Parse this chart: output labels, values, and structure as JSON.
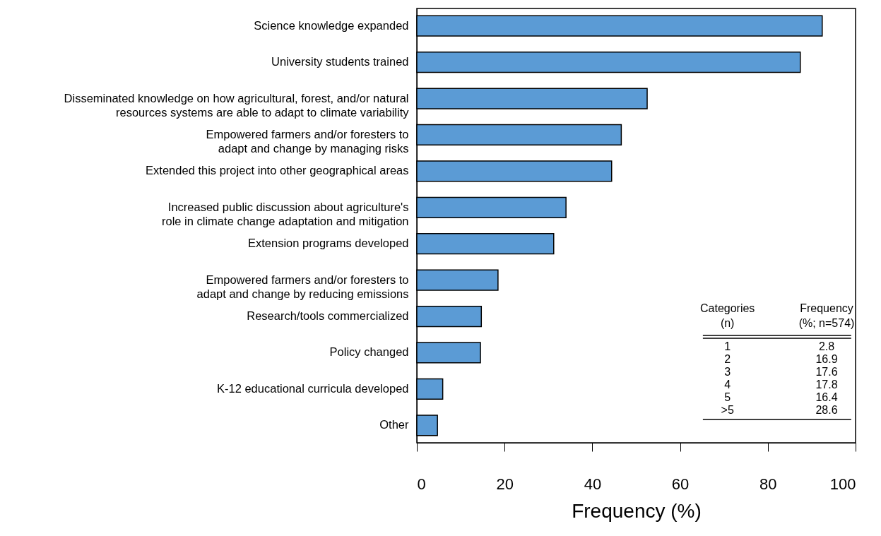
{
  "chart_data": {
    "type": "bar",
    "orientation": "horizontal",
    "xlabel": "Frequency (%)",
    "categories": [
      "Science knowledge expanded",
      "University students trained",
      "Disseminated knowledge on how agricultural, forest, and/or natural\nresources systems are able to adapt to climate variability",
      "Empowered farmers and/or foresters to\nadapt and change by managing risks",
      "Extended this project into other geographical areas",
      "Increased public discussion about agriculture's\nrole in climate change adaptation and mitigation",
      "Extension programs developed",
      "Empowered farmers and/or foresters to\nadapt and change by reducing emissions",
      "Research/tools commercialized",
      "Policy changed",
      "K-12 educational curricula developed",
      "Other"
    ],
    "values": [
      92.4,
      87.4,
      52.5,
      46.6,
      44.4,
      34.0,
      31.2,
      18.5,
      14.7,
      14.5,
      5.9,
      4.7
    ],
    "color": "#5b9bd5",
    "xlim": [
      0,
      100
    ],
    "xticks": [
      0,
      20,
      40,
      60,
      80,
      100
    ],
    "grid": false,
    "annotations": [
      "Categories\n(n)",
      "Frequency\n(%; n=574)",
      "1",
      "2.8",
      "2",
      "16.9",
      "3",
      "17.6",
      "4",
      "17.8",
      "5",
      "16.4",
      ">5",
      "28.6"
    ]
  }
}
